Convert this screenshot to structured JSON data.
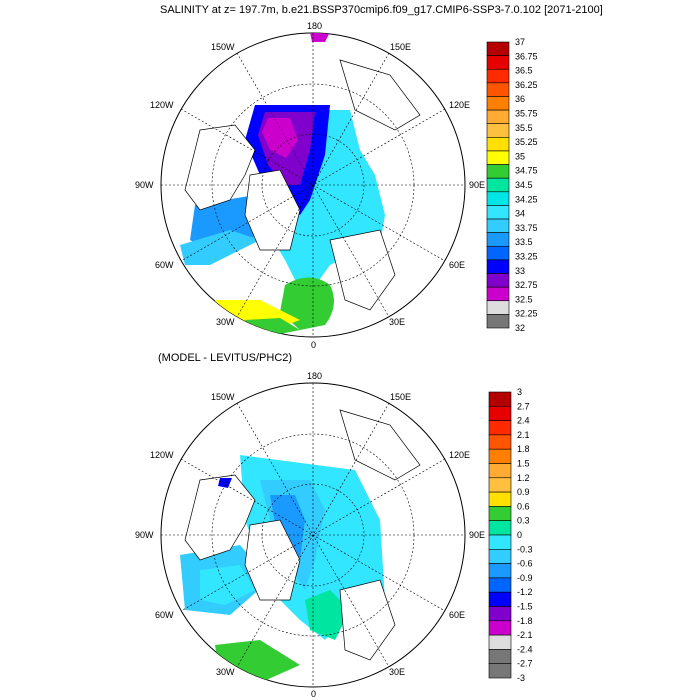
{
  "top_panel": {
    "title": "SALINITY at z= 197.7m, b.e21.BSSP370cmip6.f09_g17.CMIP6-SSP3-7.0.102 [2071-2100]",
    "lon_labels": {
      "top": "180",
      "bottom": "0",
      "left_upper": "120W",
      "left_mid": "90W",
      "left_lower": "60W",
      "left_bottom": "30W",
      "left_top": "150W",
      "right_upper": "120E",
      "right_mid": "90E",
      "right_lower": "60E",
      "right_bottom": "30E",
      "right_top": "150E"
    },
    "colorbar": {
      "labels": [
        "37",
        "36.75",
        "36.5",
        "36.25",
        "36",
        "35.75",
        "35.5",
        "35.25",
        "35",
        "34.75",
        "34.5",
        "34.25",
        "34",
        "33.75",
        "33.5",
        "33.25",
        "33",
        "32.75",
        "32.5",
        "32.25",
        "32"
      ],
      "colors": [
        "#b40000",
        "#e60000",
        "#ff2a00",
        "#ff5500",
        "#ff8000",
        "#ffaa33",
        "#ffc040",
        "#ffe000",
        "#ffff00",
        "#33cc33",
        "#00e6a0",
        "#00e6e6",
        "#33e6ff",
        "#33ccff",
        "#1a99ff",
        "#0066ff",
        "#0000ff",
        "#8000cc",
        "#cc00cc",
        "#dddddd",
        "#777777"
      ]
    }
  },
  "bottom_panel": {
    "subtitle": "(MODEL - LEVITUS/PHC2)",
    "lon_labels": {
      "top": "180",
      "bottom": "0",
      "left_upper": "120W",
      "left_mid": "90W",
      "left_lower": "60W",
      "left_bottom": "30W",
      "left_top": "150W",
      "right_upper": "120E",
      "right_mid": "90E",
      "right_lower": "60E",
      "right_bottom": "30E",
      "right_top": "150E"
    },
    "colorbar": {
      "labels": [
        "3",
        "2.7",
        "2.4",
        "2.1",
        "1.8",
        "1.5",
        "1.2",
        "0.9",
        "0.6",
        "0.3",
        "0",
        "-0.3",
        "-0.6",
        "-0.9",
        "-1.2",
        "-1.5",
        "-1.8",
        "-2.1",
        "-2.4",
        "-2.7",
        "-3"
      ],
      "colors": [
        "#b40000",
        "#e60000",
        "#ff2a00",
        "#ff5500",
        "#ff8000",
        "#ffaa33",
        "#ffc040",
        "#ffe000",
        "#33cc33",
        "#00e6a0",
        "#33e6ff",
        "#33ccff",
        "#1a99ff",
        "#0066ff",
        "#0000ff",
        "#8000cc",
        "#cc00cc",
        "#dddddd",
        "#777777",
        "#777777"
      ]
    }
  }
}
